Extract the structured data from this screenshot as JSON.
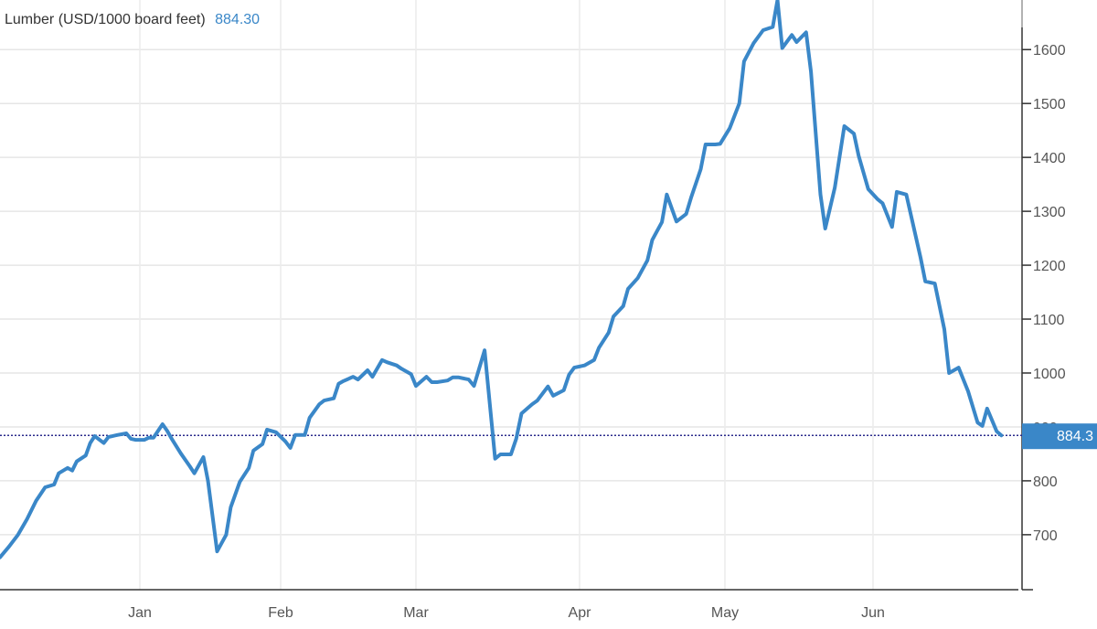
{
  "chart_data": {
    "type": "line",
    "title": "Lumber (USD/1000 board feet)",
    "title_value": "884.30",
    "last_value_label": "884.3",
    "last_value": 884.3,
    "ylim": [
      598,
      1692
    ],
    "y_ticks": [
      700,
      800,
      900,
      1000,
      1100,
      1200,
      1300,
      1400,
      1500,
      1600
    ],
    "x_ticks": [
      {
        "label": "Jan",
        "date": "2021-01-01"
      },
      {
        "label": "Feb",
        "date": "2021-02-01"
      },
      {
        "label": "Mar",
        "date": "2021-03-01"
      },
      {
        "label": "Apr",
        "date": "2021-04-01"
      },
      {
        "label": "May",
        "date": "2021-05-01"
      },
      {
        "label": "Jun",
        "date": "2021-06-01"
      }
    ],
    "grid": true,
    "colors": {
      "line": "#3a87c8",
      "last_value_line": "#2b2b8c",
      "label_bg": "#3a87c8"
    },
    "series": [
      {
        "points": [
          [
            "2020-12-01",
            658
          ],
          [
            "2020-12-03",
            678
          ],
          [
            "2020-12-05",
            700
          ],
          [
            "2020-12-07",
            729
          ],
          [
            "2020-12-09",
            763
          ],
          [
            "2020-12-11",
            788
          ],
          [
            "2020-12-13",
            793
          ],
          [
            "2020-12-14",
            814
          ],
          [
            "2020-12-16",
            824
          ],
          [
            "2020-12-17",
            819
          ],
          [
            "2020-12-18",
            836
          ],
          [
            "2020-12-20",
            847
          ],
          [
            "2020-12-21",
            870
          ],
          [
            "2020-12-22",
            883
          ],
          [
            "2020-12-24",
            870
          ],
          [
            "2020-12-25",
            881
          ],
          [
            "2020-12-27",
            885
          ],
          [
            "2020-12-29",
            888
          ],
          [
            "2020-12-30",
            878
          ],
          [
            "2020-12-31",
            876
          ],
          [
            "2021-01-02",
            876
          ],
          [
            "2021-01-03",
            880
          ],
          [
            "2021-01-04",
            880
          ],
          [
            "2021-01-06",
            905
          ],
          [
            "2021-01-07",
            893
          ],
          [
            "2021-01-08",
            878
          ],
          [
            "2021-01-10",
            851
          ],
          [
            "2021-01-12",
            827
          ],
          [
            "2021-01-13",
            814
          ],
          [
            "2021-01-15",
            844
          ],
          [
            "2021-01-16",
            800
          ],
          [
            "2021-01-18",
            669
          ],
          [
            "2021-01-20",
            700
          ],
          [
            "2021-01-21",
            751
          ],
          [
            "2021-01-23",
            798
          ],
          [
            "2021-01-25",
            824
          ],
          [
            "2021-01-26",
            856
          ],
          [
            "2021-01-28",
            868
          ],
          [
            "2021-01-29",
            895
          ],
          [
            "2021-01-31",
            890
          ],
          [
            "2021-02-02",
            873
          ],
          [
            "2021-02-03",
            861
          ],
          [
            "2021-02-04",
            885
          ],
          [
            "2021-02-06",
            885
          ],
          [
            "2021-02-07",
            917
          ],
          [
            "2021-02-09",
            942
          ],
          [
            "2021-02-10",
            949
          ],
          [
            "2021-02-12",
            953
          ],
          [
            "2021-02-13",
            980
          ],
          [
            "2021-02-14",
            985
          ],
          [
            "2021-02-16",
            993
          ],
          [
            "2021-02-17",
            988
          ],
          [
            "2021-02-19",
            1005
          ],
          [
            "2021-02-20",
            993
          ],
          [
            "2021-02-22",
            1024
          ],
          [
            "2021-02-23",
            1020
          ],
          [
            "2021-02-25",
            1014
          ],
          [
            "2021-02-26",
            1008
          ],
          [
            "2021-02-28",
            998
          ],
          [
            "2021-03-01",
            976
          ],
          [
            "2021-03-03",
            993
          ],
          [
            "2021-03-04",
            983
          ],
          [
            "2021-03-05",
            983
          ],
          [
            "2021-03-07",
            986
          ],
          [
            "2021-03-08",
            992
          ],
          [
            "2021-03-09",
            992
          ],
          [
            "2021-03-11",
            988
          ],
          [
            "2021-03-12",
            976
          ],
          [
            "2021-03-14",
            1042
          ],
          [
            "2021-03-16",
            841
          ],
          [
            "2021-03-17",
            849
          ],
          [
            "2021-03-19",
            849
          ],
          [
            "2021-03-20",
            878
          ],
          [
            "2021-03-21",
            925
          ],
          [
            "2021-03-23",
            942
          ],
          [
            "2021-03-24",
            949
          ],
          [
            "2021-03-26",
            975
          ],
          [
            "2021-03-27",
            958
          ],
          [
            "2021-03-29",
            968
          ],
          [
            "2021-03-30",
            997
          ],
          [
            "2021-03-31",
            1010
          ],
          [
            "2021-04-02",
            1014
          ],
          [
            "2021-04-04",
            1024
          ],
          [
            "2021-04-05",
            1047
          ],
          [
            "2021-04-07",
            1075
          ],
          [
            "2021-04-08",
            1105
          ],
          [
            "2021-04-10",
            1124
          ],
          [
            "2021-04-11",
            1156
          ],
          [
            "2021-04-13",
            1176
          ],
          [
            "2021-04-15",
            1209
          ],
          [
            "2021-04-16",
            1247
          ],
          [
            "2021-04-18",
            1280
          ],
          [
            "2021-04-19",
            1331
          ],
          [
            "2021-04-21",
            1281
          ],
          [
            "2021-04-23",
            1295
          ],
          [
            "2021-04-24",
            1325
          ],
          [
            "2021-04-26",
            1378
          ],
          [
            "2021-04-27",
            1424
          ],
          [
            "2021-04-29",
            1424
          ],
          [
            "2021-04-30",
            1425
          ],
          [
            "2021-05-02",
            1454
          ],
          [
            "2021-05-04",
            1500
          ],
          [
            "2021-05-05",
            1578
          ],
          [
            "2021-05-07",
            1612
          ],
          [
            "2021-05-09",
            1636
          ],
          [
            "2021-05-11",
            1642
          ],
          [
            "2021-05-12",
            1692
          ],
          [
            "2021-05-13",
            1603
          ],
          [
            "2021-05-15",
            1627
          ],
          [
            "2021-05-16",
            1614
          ],
          [
            "2021-05-18",
            1632
          ],
          [
            "2021-05-19",
            1559
          ],
          [
            "2021-05-21",
            1331
          ],
          [
            "2021-05-22",
            1268
          ],
          [
            "2021-05-24",
            1344
          ],
          [
            "2021-05-26",
            1458
          ],
          [
            "2021-05-28",
            1444
          ],
          [
            "2021-05-29",
            1403
          ],
          [
            "2021-05-31",
            1341
          ],
          [
            "2021-06-02",
            1322
          ],
          [
            "2021-06-03",
            1315
          ],
          [
            "2021-06-05",
            1271
          ],
          [
            "2021-06-06",
            1336
          ],
          [
            "2021-06-08",
            1331
          ],
          [
            "2021-06-09",
            1292
          ],
          [
            "2021-06-11",
            1214
          ],
          [
            "2021-06-12",
            1170
          ],
          [
            "2021-06-14",
            1166
          ],
          [
            "2021-06-16",
            1081
          ],
          [
            "2021-06-17",
            1000
          ],
          [
            "2021-06-19",
            1010
          ],
          [
            "2021-06-21",
            966
          ],
          [
            "2021-06-23",
            908
          ],
          [
            "2021-06-24",
            902
          ],
          [
            "2021-06-25",
            934
          ],
          [
            "2021-06-27",
            892
          ],
          [
            "2021-06-28",
            884.3
          ]
        ]
      }
    ]
  }
}
